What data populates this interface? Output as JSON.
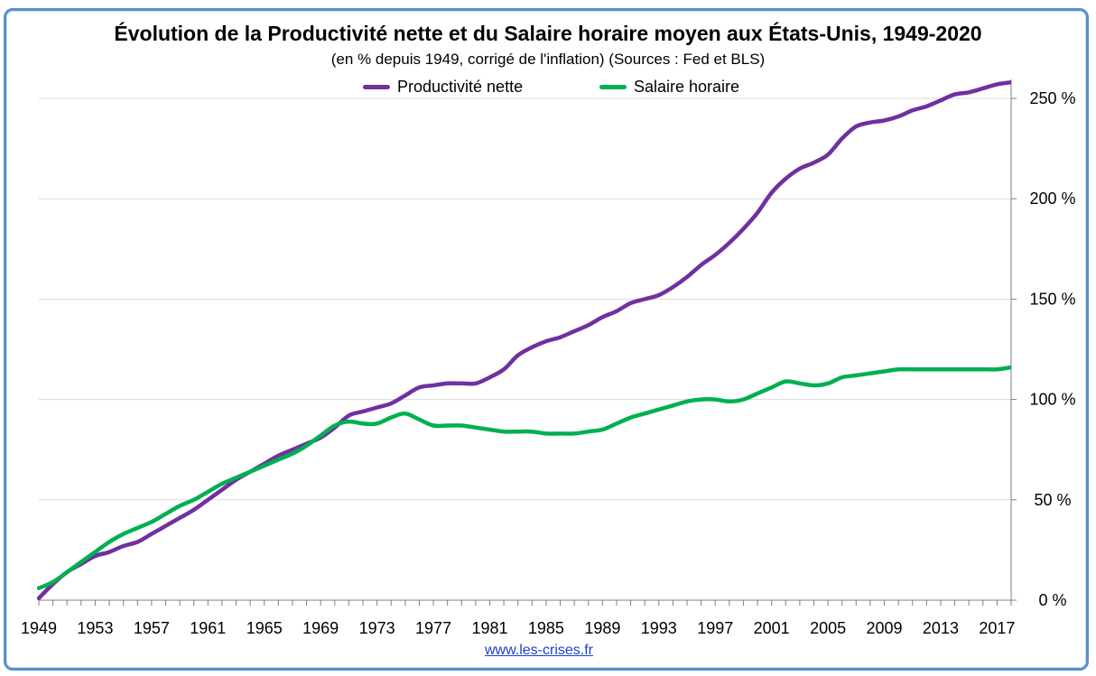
{
  "chart_data": {
    "type": "line",
    "title": "Évolution de la Productivité nette et du Salaire horaire moyen aux États-Unis, 1949-2020",
    "subtitle": "(en % depuis 1949, corrigé de l'inflation) (Sources : Fed et BLS)",
    "source": "www.les-crises.fr",
    "x_tick_labels": [
      "1949",
      "1953",
      "1957",
      "1961",
      "1965",
      "1969",
      "1973",
      "1977",
      "1981",
      "1985",
      "1989",
      "1993",
      "1997",
      "2001",
      "2005",
      "2009",
      "2013",
      "2017"
    ],
    "y_tick_labels": [
      "0 %",
      "50 %",
      "100 %",
      "150 %",
      "200 %",
      "250 %"
    ],
    "xlim": [
      1949,
      2018
    ],
    "ylim": [
      0,
      260
    ],
    "y_axis_position": "right",
    "grid": "horizontal",
    "legend_position": "top-center",
    "series": [
      {
        "name": "Productivité nette",
        "color": "#7030a0",
        "x": [
          1949,
          1950,
          1951,
          1952,
          1953,
          1954,
          1955,
          1956,
          1957,
          1958,
          1959,
          1960,
          1961,
          1962,
          1963,
          1964,
          1965,
          1966,
          1967,
          1968,
          1969,
          1970,
          1971,
          1972,
          1973,
          1974,
          1975,
          1976,
          1977,
          1978,
          1979,
          1980,
          1981,
          1982,
          1983,
          1984,
          1985,
          1986,
          1987,
          1988,
          1989,
          1990,
          1991,
          1992,
          1993,
          1994,
          1995,
          1996,
          1997,
          1998,
          1999,
          2000,
          2001,
          2002,
          2003,
          2004,
          2005,
          2006,
          2007,
          2008,
          2009,
          2010,
          2011,
          2012,
          2013,
          2014,
          2015,
          2016,
          2017,
          2018
        ],
        "y": [
          1,
          8,
          14,
          18,
          22,
          24,
          27,
          29,
          33,
          37,
          41,
          45,
          50,
          55,
          60,
          64,
          68,
          72,
          75,
          78,
          81,
          86,
          92,
          94,
          96,
          98,
          102,
          106,
          107,
          108,
          108,
          108,
          111,
          115,
          122,
          126,
          129,
          131,
          134,
          137,
          141,
          144,
          148,
          150,
          152,
          156,
          161,
          167,
          172,
          178,
          185,
          193,
          203,
          210,
          215,
          218,
          222,
          230,
          236,
          238,
          239,
          241,
          244,
          246,
          249,
          252,
          253,
          255,
          257,
          258
        ]
      },
      {
        "name": "Salaire horaire",
        "color": "#00b050",
        "x": [
          1949,
          1950,
          1951,
          1952,
          1953,
          1954,
          1955,
          1956,
          1957,
          1958,
          1959,
          1960,
          1961,
          1962,
          1963,
          1964,
          1965,
          1966,
          1967,
          1968,
          1969,
          1970,
          1971,
          1972,
          1973,
          1974,
          1975,
          1976,
          1977,
          1978,
          1979,
          1980,
          1981,
          1982,
          1983,
          1984,
          1985,
          1986,
          1987,
          1988,
          1989,
          1990,
          1991,
          1992,
          1993,
          1994,
          1995,
          1996,
          1997,
          1998,
          1999,
          2000,
          2001,
          2002,
          2003,
          2004,
          2005,
          2006,
          2007,
          2008,
          2009,
          2010,
          2011,
          2012,
          2013,
          2014,
          2015,
          2016,
          2017,
          2018
        ],
        "y": [
          6,
          9,
          14,
          19,
          24,
          29,
          33,
          36,
          39,
          43,
          47,
          50,
          54,
          58,
          61,
          64,
          67,
          70,
          73,
          77,
          82,
          87,
          89,
          88,
          88,
          91,
          93,
          90,
          87,
          87,
          87,
          86,
          85,
          84,
          84,
          84,
          83,
          83,
          83,
          84,
          85,
          88,
          91,
          93,
          95,
          97,
          99,
          100,
          100,
          99,
          100,
          103,
          106,
          109,
          108,
          107,
          108,
          111,
          112,
          113,
          114,
          115,
          115,
          115,
          115,
          115,
          115,
          115,
          115,
          116
        ]
      }
    ]
  }
}
